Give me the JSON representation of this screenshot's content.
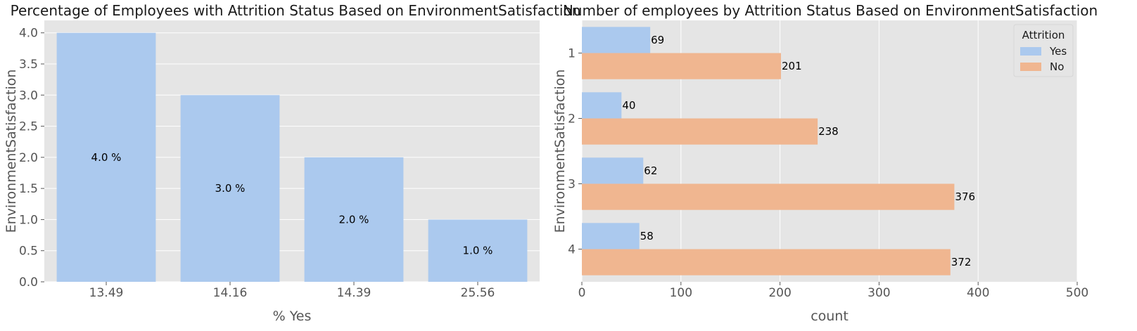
{
  "chart_data": [
    {
      "type": "bar",
      "title": "Percentage of Employees with Attrition Status Based on EnvironmentSatisfaction",
      "xlabel": "% Yes",
      "ylabel": "EnvironmentSatisfaction",
      "categories": [
        "13.49",
        "14.16",
        "14.39",
        "25.56"
      ],
      "values": [
        4.0,
        3.0,
        2.0,
        1.0
      ],
      "bar_labels": [
        "4.0 %",
        "3.0 %",
        "2.0 %",
        "1.0 %"
      ],
      "ylim": [
        0,
        4.2
      ],
      "yticks": [
        "0.0",
        "0.5",
        "1.0",
        "1.5",
        "2.0",
        "2.5",
        "3.0",
        "3.5",
        "4.0"
      ],
      "grid": true,
      "color": "#abc9ee"
    },
    {
      "type": "bar",
      "orientation": "horizontal",
      "title": "Number of employees by Attrition Status Based on EnvironmentSatisfaction",
      "xlabel": "count",
      "ylabel": "EnvironmentSatisfaction",
      "categories": [
        "1",
        "2",
        "3",
        "4"
      ],
      "xlim": [
        0,
        500
      ],
      "xticks": [
        "0",
        "100",
        "200",
        "300",
        "400",
        "500"
      ],
      "grid": true,
      "legend": {
        "title": "Attrition",
        "placement": "top-right"
      },
      "series": [
        {
          "name": "Yes",
          "values": [
            69,
            40,
            62,
            58
          ],
          "color": "#abc9ee"
        },
        {
          "name": "No",
          "values": [
            201,
            238,
            376,
            372
          ],
          "color": "#f0b690"
        }
      ]
    }
  ]
}
